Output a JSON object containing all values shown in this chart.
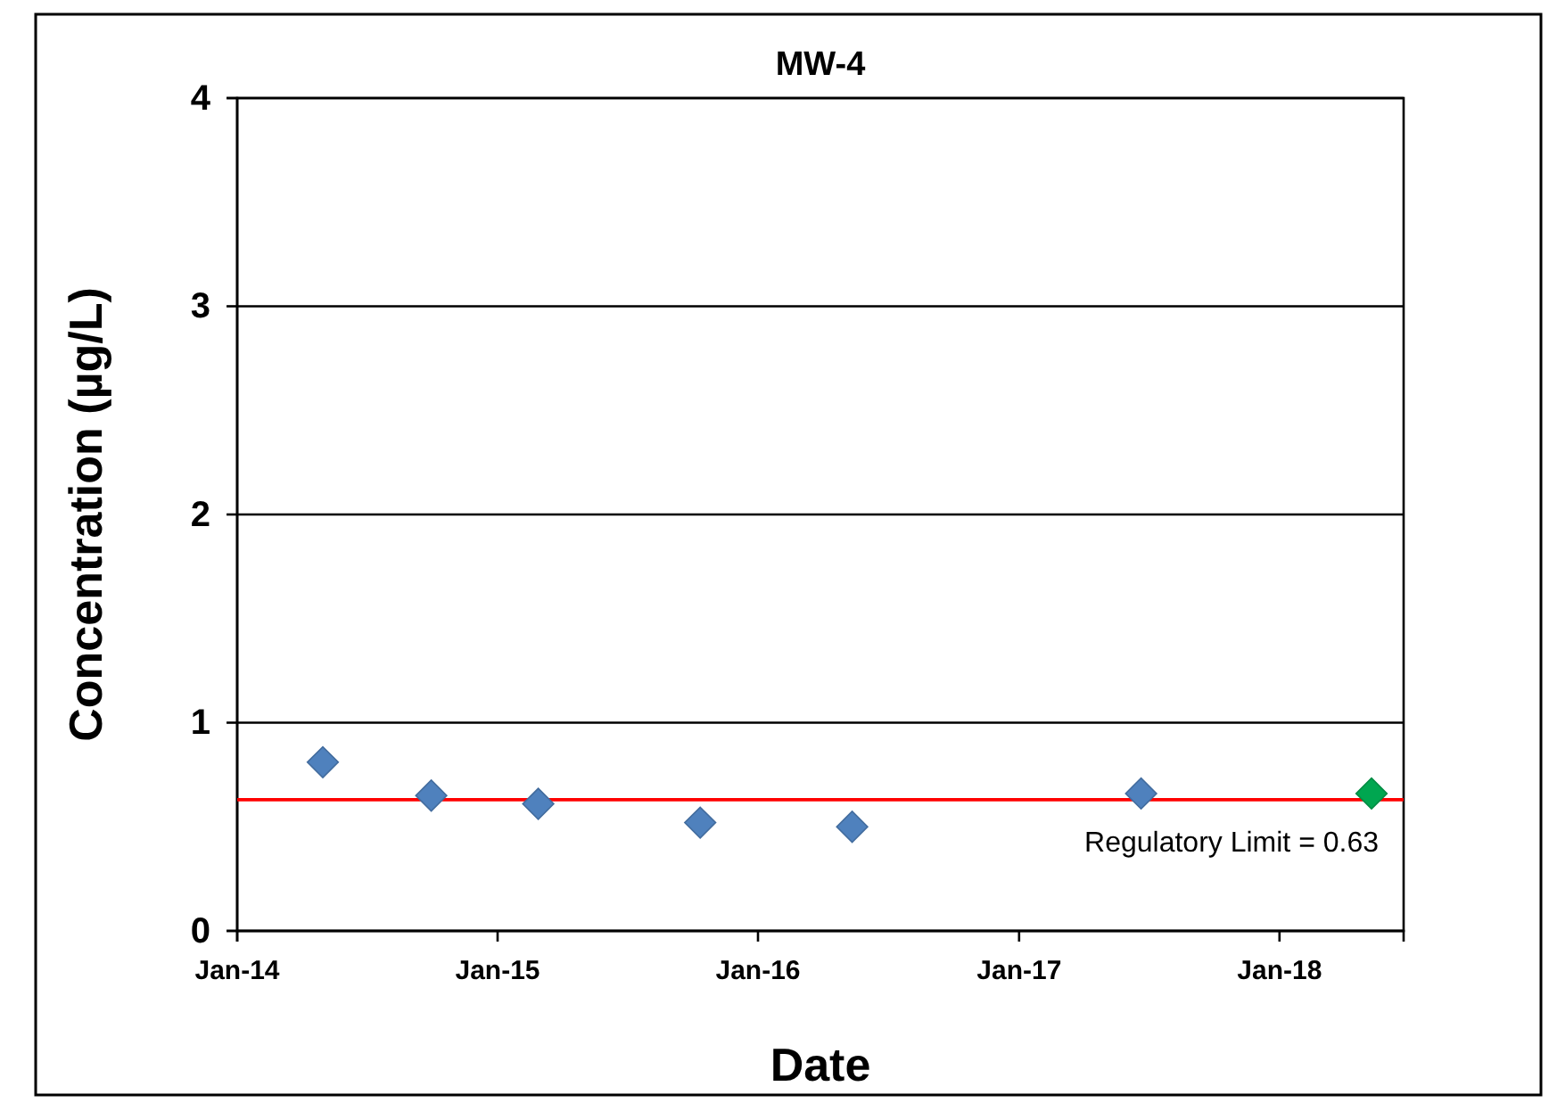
{
  "chart_data": {
    "type": "scatter",
    "title": "MW-4",
    "xlabel": "Date",
    "ylabel": "Concentration (µg/L)",
    "xlim": [
      "2014-01-01",
      "2018-06-24"
    ],
    "xticks": [
      {
        "value": "2014-01-01",
        "label": "Jan-14"
      },
      {
        "value": "2015-01-01",
        "label": "Jan-15"
      },
      {
        "value": "2016-01-01",
        "label": "Jan-16"
      },
      {
        "value": "2017-01-01",
        "label": "Jan-17"
      },
      {
        "value": "2018-01-01",
        "label": "Jan-18"
      }
    ],
    "ylim": [
      0,
      4
    ],
    "yticks": [
      0,
      1,
      2,
      3,
      4
    ],
    "grid": "y",
    "marker": "diamond",
    "series": [
      {
        "color": "#4f81bd",
        "x": [
          "2014-05-01",
          "2014-09-30",
          "2015-02-27",
          "2015-10-12",
          "2016-05-12",
          "2017-06-21"
        ],
        "values": [
          0.81,
          0.65,
          0.61,
          0.52,
          0.5,
          0.66
        ]
      },
      {
        "color": "#00a650",
        "x": [
          "2018-05-10"
        ],
        "values": [
          0.66
        ]
      }
    ],
    "ref_lines": [
      {
        "axis": "y",
        "value": 0.63,
        "label": "Regulatory Limit = 0.63",
        "color": "#ff0000"
      }
    ]
  }
}
